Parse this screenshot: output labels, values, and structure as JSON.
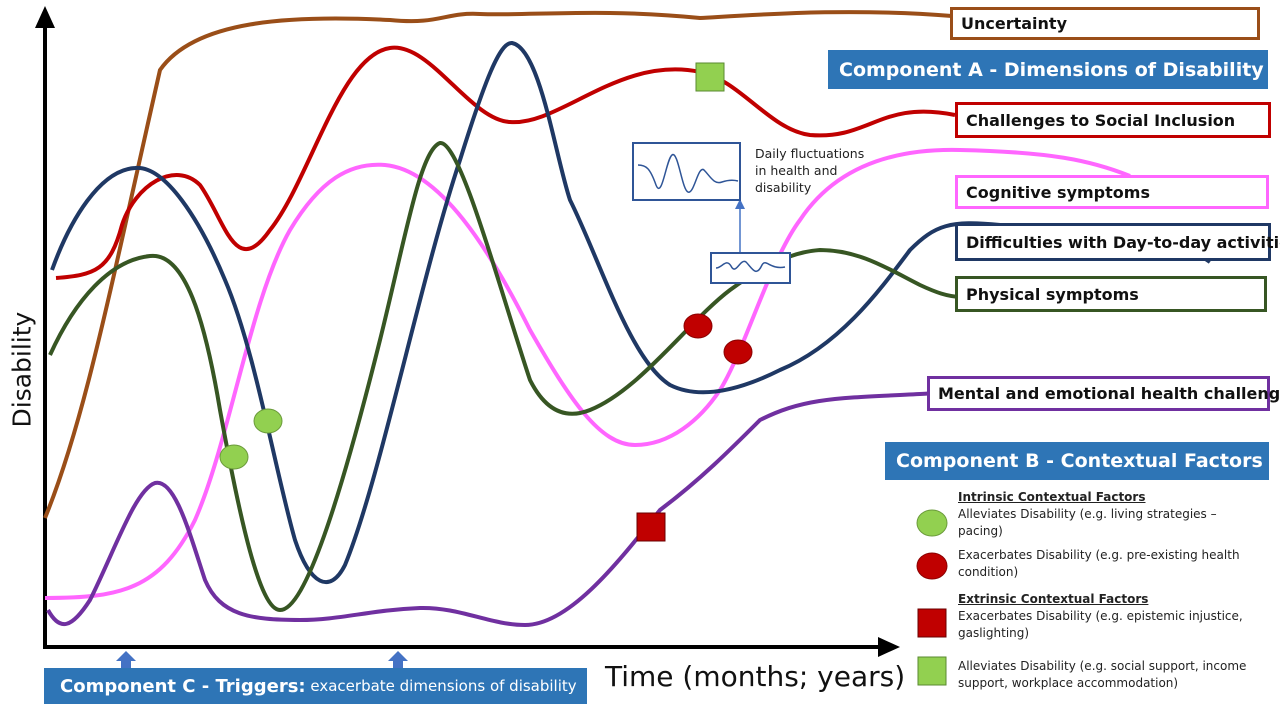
{
  "axes": {
    "y_label": "Disability",
    "x_label": "Time (months; years)"
  },
  "components": {
    "a": "Component A - Dimensions of Disability",
    "b": "Component B - Contextual Factors",
    "c_bold": "Component C - Triggers:",
    "c_rest": " exacerbate dimensions of disability"
  },
  "dimensions": [
    {
      "label": "Uncertainty",
      "color": "#9a4e18"
    },
    {
      "label": "Challenges to Social Inclusion",
      "color": "#c00000"
    },
    {
      "label": "Cognitive symptoms",
      "color": "#ff66ff"
    },
    {
      "label": "Difficulties with Day-to-day activities",
      "color": "#1f3864"
    },
    {
      "label": "Physical symptoms",
      "color": "#375623"
    },
    {
      "label": "Mental and emotional health challenges",
      "color": "#7030a0"
    }
  ],
  "fluctuation_note": {
    "line1": "Daily fluctuations",
    "line2": "in health and",
    "line3": "disability"
  },
  "legend": {
    "intrinsic_heading": "Intrinsic Contextual Factors",
    "intrinsic_alleviates": "Alleviates Disability (e.g. living strategies – pacing)",
    "intrinsic_exacerbates": "Exacerbates Disability (e.g. pre-existing health condition)",
    "extrinsic_heading": "Extrinsic Contextual Factors",
    "extrinsic_exacerbates": "Exacerbates Disability (e.g. epistemic injustice, gaslighting)",
    "extrinsic_alleviates": "Alleviates Disability (e.g. social support, income support, workplace accommodation)"
  },
  "marker_colors": {
    "alleviates": "#92d050",
    "exacerbates": "#c00000",
    "trigger_arrow": "#4472c4"
  }
}
